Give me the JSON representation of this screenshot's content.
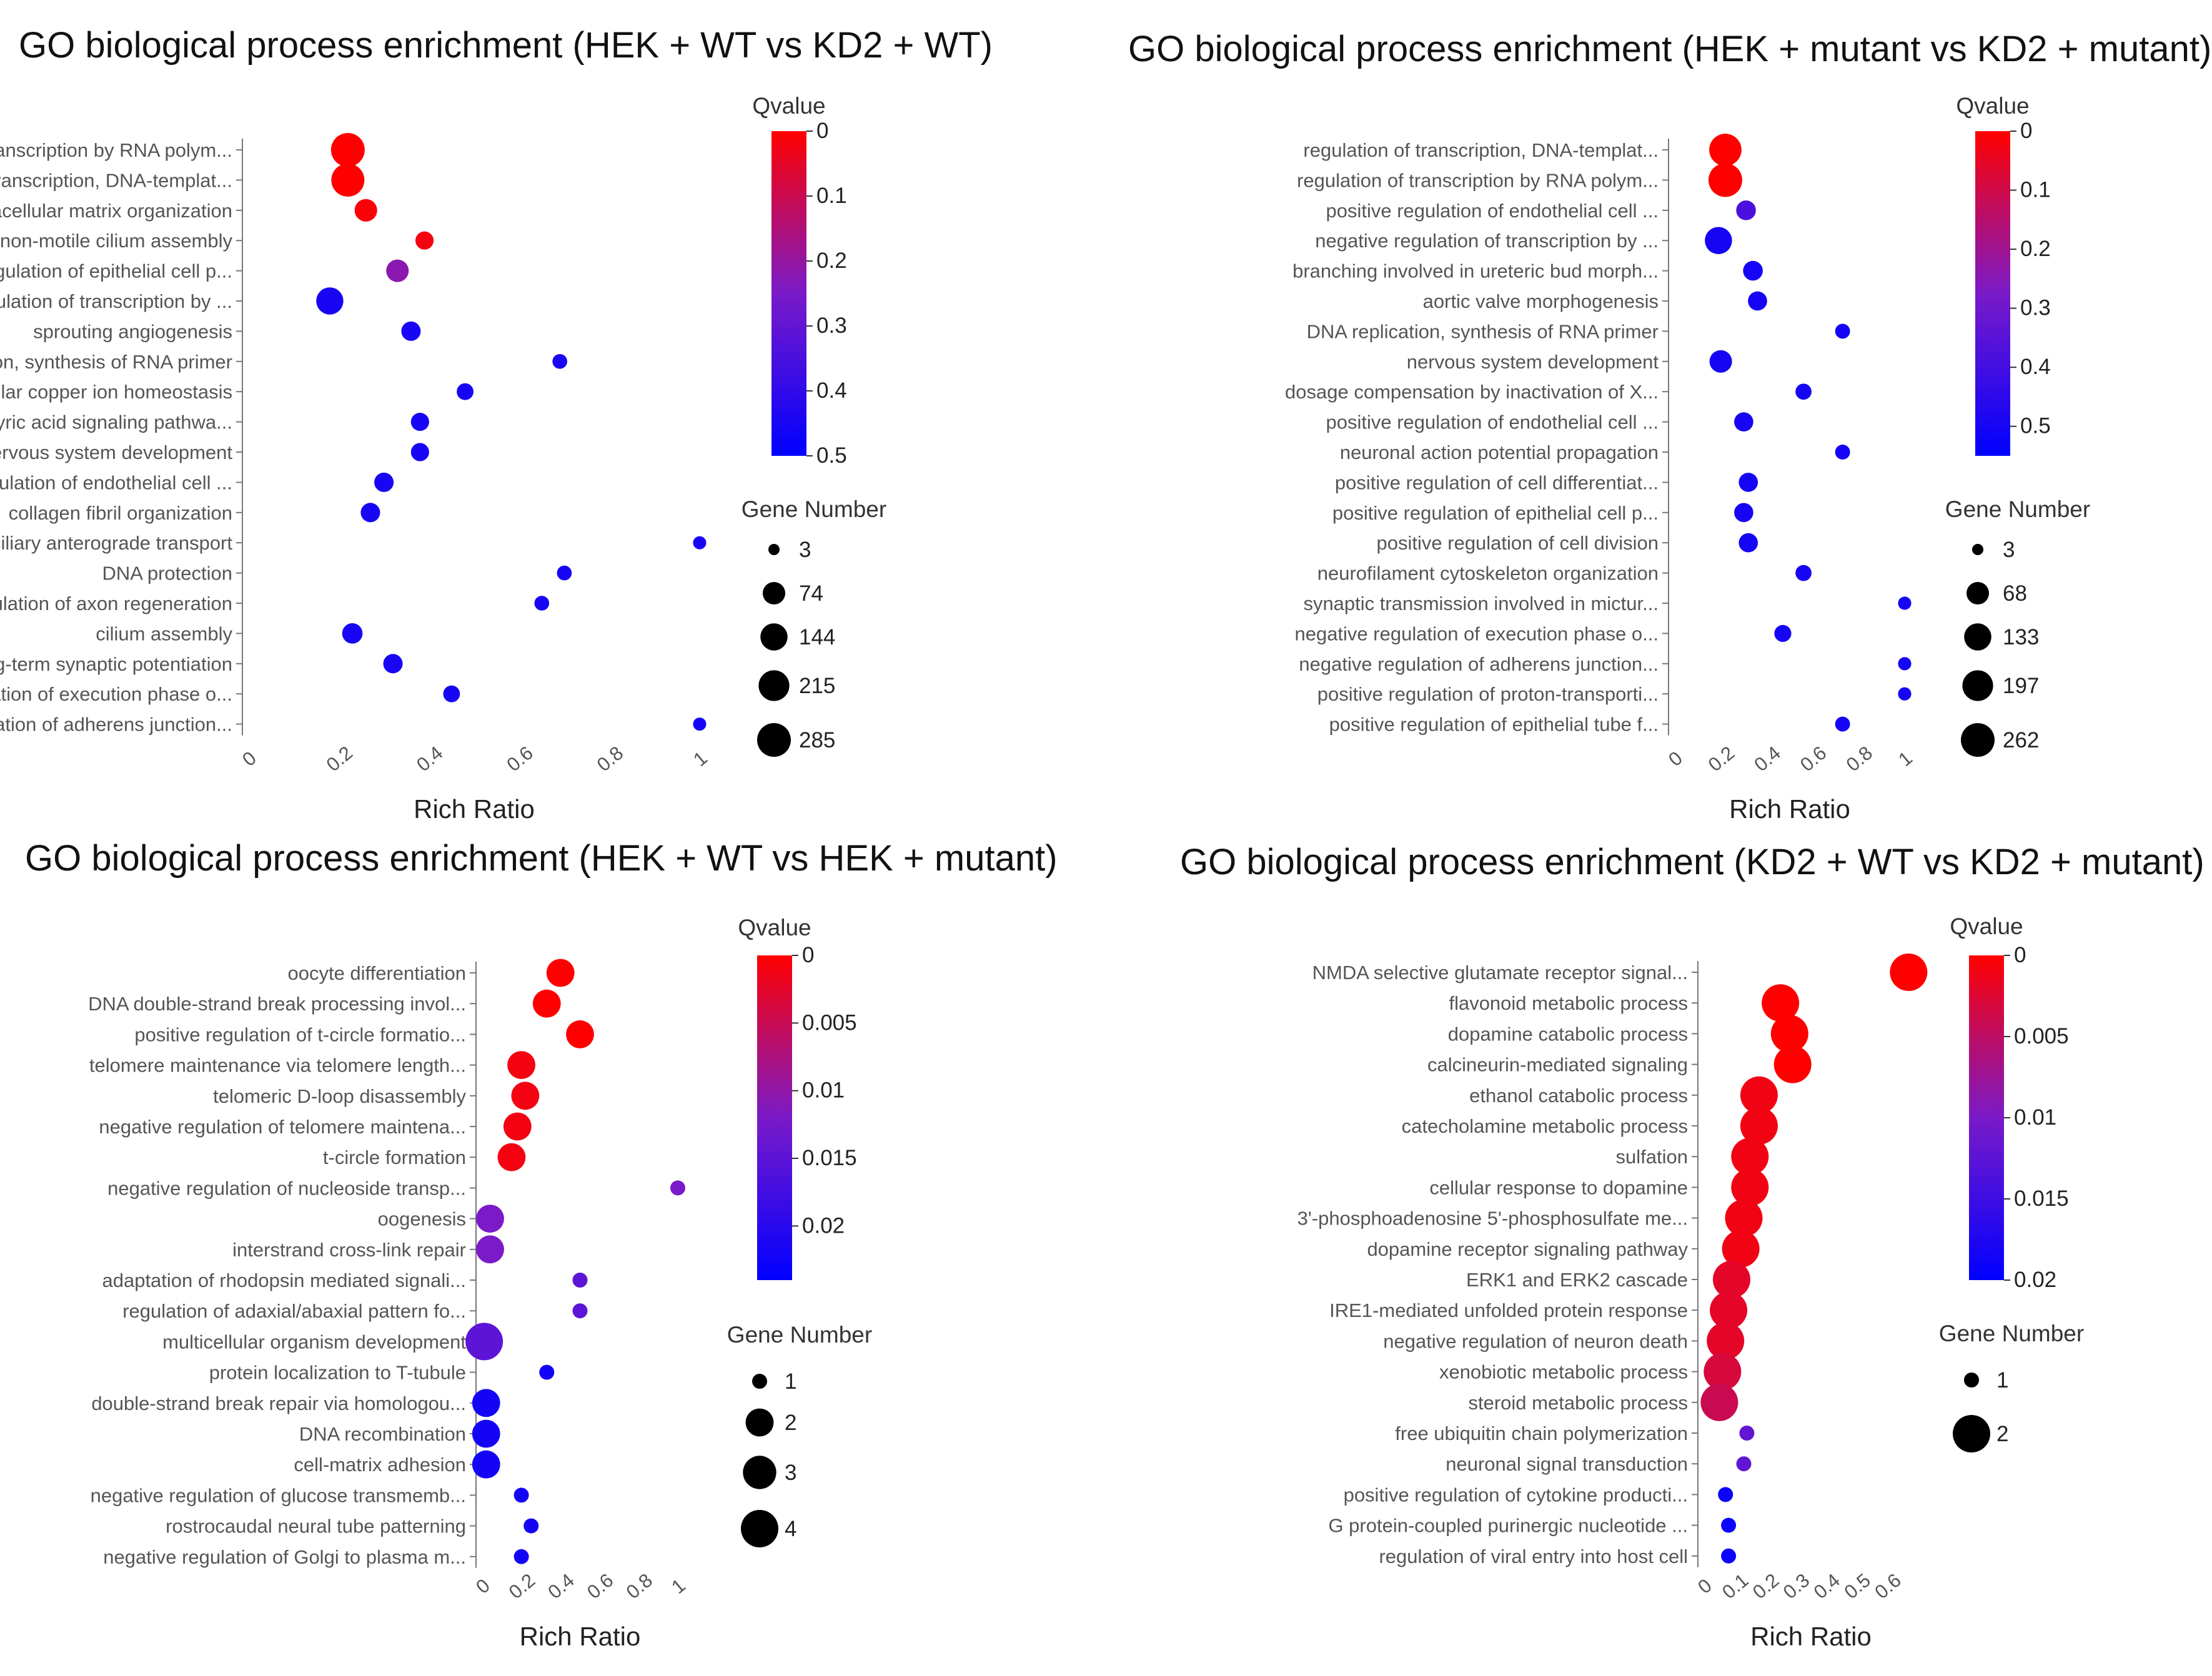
{
  "colors": {
    "high": "#ff0000",
    "mid": "#7a1ac8",
    "low": "#0000ff",
    "text": "#555555"
  },
  "chart_data": [
    {
      "type": "scatter",
      "title": "GO biological process enrichment (HEK + WT vs KD2 + WT)",
      "xlabel": "Rich Ratio",
      "xlim": [
        0,
        1
      ],
      "xticks": [
        "0",
        "0.2",
        "0.4",
        "0.6",
        "0.8",
        "1"
      ],
      "color_legend": {
        "title": "Qvalue",
        "min": 0,
        "max": 0.5,
        "ticks": [
          "0",
          "0.1",
          "0.2",
          "0.3",
          "0.4",
          "0.5"
        ]
      },
      "size_legend": {
        "title": "Gene Number",
        "values": [
          3,
          74,
          144,
          215,
          285
        ]
      },
      "terms": [
        {
          "term": "regulation of transcription by RNA polym...",
          "rich_ratio": 0.22,
          "qvalue": 0.0,
          "gene_number": 285
        },
        {
          "term": "regulation of transcription, DNA-templat...",
          "rich_ratio": 0.22,
          "qvalue": 0.0,
          "gene_number": 270
        },
        {
          "term": "extracellular matrix organization",
          "rich_ratio": 0.26,
          "qvalue": 0.01,
          "gene_number": 74
        },
        {
          "term": "non-motile cilium assembly",
          "rich_ratio": 0.39,
          "qvalue": 0.02,
          "gene_number": 30
        },
        {
          "term": "positive regulation of epithelial cell p...",
          "rich_ratio": 0.33,
          "qvalue": 0.22,
          "gene_number": 74
        },
        {
          "term": "negative regulation of transcription by ...",
          "rich_ratio": 0.18,
          "qvalue": 0.45,
          "gene_number": 144
        },
        {
          "term": "sprouting angiogenesis",
          "rich_ratio": 0.36,
          "qvalue": 0.45,
          "gene_number": 40
        },
        {
          "term": "DNA replication, synthesis of RNA primer",
          "rich_ratio": 0.69,
          "qvalue": 0.45,
          "gene_number": 10
        },
        {
          "term": "cellular copper ion homeostasis",
          "rich_ratio": 0.48,
          "qvalue": 0.45,
          "gene_number": 20
        },
        {
          "term": "gamma-aminobutyric acid signaling pathwa...",
          "rich_ratio": 0.38,
          "qvalue": 0.45,
          "gene_number": 30
        },
        {
          "term": "peripheral nervous system development",
          "rich_ratio": 0.38,
          "qvalue": 0.45,
          "gene_number": 30
        },
        {
          "term": "positive regulation of endothelial cell ...",
          "rich_ratio": 0.3,
          "qvalue": 0.45,
          "gene_number": 40
        },
        {
          "term": "collagen fibril organization",
          "rich_ratio": 0.27,
          "qvalue": 0.45,
          "gene_number": 40
        },
        {
          "term": "intraciliary anterograde transport",
          "rich_ratio": 1.0,
          "qvalue": 0.45,
          "gene_number": 5
        },
        {
          "term": "DNA protection",
          "rich_ratio": 0.7,
          "qvalue": 0.45,
          "gene_number": 10
        },
        {
          "term": "positive regulation of axon regeneration",
          "rich_ratio": 0.65,
          "qvalue": 0.45,
          "gene_number": 10
        },
        {
          "term": "cilium assembly",
          "rich_ratio": 0.23,
          "qvalue": 0.45,
          "gene_number": 50
        },
        {
          "term": "long-term synaptic potentiation",
          "rich_ratio": 0.32,
          "qvalue": 0.45,
          "gene_number": 40
        },
        {
          "term": "negative regulation of execution phase o...",
          "rich_ratio": 0.45,
          "qvalue": 0.45,
          "gene_number": 20
        },
        {
          "term": "negative regulation of adherens junction...",
          "rich_ratio": 1.0,
          "qvalue": 0.45,
          "gene_number": 5
        }
      ]
    },
    {
      "type": "scatter",
      "title": "GO biological process enrichment (HEK + mutant vs KD2 + mutant)",
      "xlabel": "Rich Ratio",
      "xlim": [
        0,
        1
      ],
      "xticks": [
        "0",
        "0.2",
        "0.4",
        "0.6",
        "0.8",
        "1"
      ],
      "color_legend": {
        "title": "Qvalue",
        "min": 0,
        "max": 0.55,
        "ticks": [
          "0",
          "0.1",
          "0.2",
          "0.3",
          "0.4",
          "0.5"
        ]
      },
      "size_legend": {
        "title": "Gene Number",
        "values": [
          3,
          68,
          133,
          197,
          262
        ]
      },
      "terms": [
        {
          "term": "regulation of transcription, DNA-templat...",
          "rich_ratio": 0.22,
          "qvalue": 0.0,
          "gene_number": 230
        },
        {
          "term": "regulation of transcription by RNA polym...",
          "rich_ratio": 0.22,
          "qvalue": 0.0,
          "gene_number": 262
        },
        {
          "term": "positive regulation of endothelial cell ...",
          "rich_ratio": 0.31,
          "qvalue": 0.38,
          "gene_number": 40
        },
        {
          "term": "negative regulation of transcription by ...",
          "rich_ratio": 0.19,
          "qvalue": 0.5,
          "gene_number": 133
        },
        {
          "term": "branching involved in ureteric bud morph...",
          "rich_ratio": 0.34,
          "qvalue": 0.5,
          "gene_number": 40
        },
        {
          "term": "aortic valve morphogenesis",
          "rich_ratio": 0.36,
          "qvalue": 0.5,
          "gene_number": 35
        },
        {
          "term": "DNA replication, synthesis of RNA primer",
          "rich_ratio": 0.73,
          "qvalue": 0.5,
          "gene_number": 10
        },
        {
          "term": "nervous system development",
          "rich_ratio": 0.2,
          "qvalue": 0.5,
          "gene_number": 68
        },
        {
          "term": "dosage compensation by inactivation of X...",
          "rich_ratio": 0.56,
          "qvalue": 0.5,
          "gene_number": 15
        },
        {
          "term": "positive regulation of endothelial cell ...",
          "rich_ratio": 0.3,
          "qvalue": 0.5,
          "gene_number": 35
        },
        {
          "term": "neuronal action potential propagation",
          "rich_ratio": 0.73,
          "qvalue": 0.5,
          "gene_number": 10
        },
        {
          "term": "positive regulation of cell differentiat...",
          "rich_ratio": 0.32,
          "qvalue": 0.5,
          "gene_number": 35
        },
        {
          "term": "positive regulation of epithelial cell p...",
          "rich_ratio": 0.3,
          "qvalue": 0.5,
          "gene_number": 35
        },
        {
          "term": "positive regulation of cell division",
          "rich_ratio": 0.32,
          "qvalue": 0.5,
          "gene_number": 35
        },
        {
          "term": "neurofilament cytoskeleton organization",
          "rich_ratio": 0.56,
          "qvalue": 0.5,
          "gene_number": 15
        },
        {
          "term": "synaptic transmission involved in mictur...",
          "rich_ratio": 1.0,
          "qvalue": 0.5,
          "gene_number": 5
        },
        {
          "term": "negative regulation of execution phase o...",
          "rich_ratio": 0.47,
          "qvalue": 0.5,
          "gene_number": 20
        },
        {
          "term": "negative regulation of adherens junction...",
          "rich_ratio": 1.0,
          "qvalue": 0.5,
          "gene_number": 5
        },
        {
          "term": "positive regulation of proton-transporti...",
          "rich_ratio": 1.0,
          "qvalue": 0.5,
          "gene_number": 5
        },
        {
          "term": "positive regulation of epithelial tube f...",
          "rich_ratio": 0.73,
          "qvalue": 0.5,
          "gene_number": 10
        }
      ]
    },
    {
      "type": "scatter",
      "title": "GO biological process enrichment (HEK + WT vs HEK + mutant)",
      "xlabel": "Rich Ratio",
      "xlim": [
        0,
        1
      ],
      "xticks": [
        "0",
        "0.2",
        "0.4",
        "0.6",
        "0.8",
        "1"
      ],
      "color_legend": {
        "title": "Qvalue",
        "min": 0,
        "max": 0.024,
        "ticks": [
          "0",
          "0.005",
          "0.01",
          "0.015",
          "0.02"
        ]
      },
      "size_legend": {
        "title": "Gene Number",
        "values": [
          1,
          2,
          3,
          4
        ]
      },
      "terms": [
        {
          "term": "oocyte differentiation",
          "rich_ratio": 0.4,
          "qvalue": 0.0,
          "gene_number": 2
        },
        {
          "term": "DNA double-strand break processing invol...",
          "rich_ratio": 0.33,
          "qvalue": 0.0,
          "gene_number": 2
        },
        {
          "term": "positive regulation of t-circle formatio...",
          "rich_ratio": 0.5,
          "qvalue": 0.0,
          "gene_number": 2
        },
        {
          "term": "telomere maintenance via telomere length...",
          "rich_ratio": 0.2,
          "qvalue": 0.001,
          "gene_number": 2
        },
        {
          "term": "telomeric D-loop disassembly",
          "rich_ratio": 0.22,
          "qvalue": 0.001,
          "gene_number": 2
        },
        {
          "term": "negative regulation of telomere maintena...",
          "rich_ratio": 0.18,
          "qvalue": 0.001,
          "gene_number": 2
        },
        {
          "term": "t-circle formation",
          "rich_ratio": 0.15,
          "qvalue": 0.001,
          "gene_number": 2
        },
        {
          "term": "negative regulation of nucleoside transp...",
          "rich_ratio": 1.0,
          "qvalue": 0.012,
          "gene_number": 1
        },
        {
          "term": "oogenesis",
          "rich_ratio": 0.04,
          "qvalue": 0.012,
          "gene_number": 2
        },
        {
          "term": "interstrand cross-link repair",
          "rich_ratio": 0.04,
          "qvalue": 0.012,
          "gene_number": 2
        },
        {
          "term": "adaptation of rhodopsin mediated signali...",
          "rich_ratio": 0.5,
          "qvalue": 0.015,
          "gene_number": 1
        },
        {
          "term": "regulation of adaxial/abaxial pattern fo...",
          "rich_ratio": 0.5,
          "qvalue": 0.015,
          "gene_number": 1
        },
        {
          "term": "multicellular organism development",
          "rich_ratio": 0.01,
          "qvalue": 0.015,
          "gene_number": 4
        },
        {
          "term": "protein localization to T-tubule",
          "rich_ratio": 0.33,
          "qvalue": 0.022,
          "gene_number": 1
        },
        {
          "term": "double-strand break repair via homologou...",
          "rich_ratio": 0.02,
          "qvalue": 0.022,
          "gene_number": 2
        },
        {
          "term": "DNA recombination",
          "rich_ratio": 0.02,
          "qvalue": 0.022,
          "gene_number": 2
        },
        {
          "term": "cell-matrix adhesion",
          "rich_ratio": 0.02,
          "qvalue": 0.022,
          "gene_number": 2
        },
        {
          "term": "negative regulation of glucose transmemb...",
          "rich_ratio": 0.2,
          "qvalue": 0.022,
          "gene_number": 1
        },
        {
          "term": "rostrocaudal neural tube patterning",
          "rich_ratio": 0.25,
          "qvalue": 0.022,
          "gene_number": 1
        },
        {
          "term": "negative regulation of Golgi to plasma m...",
          "rich_ratio": 0.2,
          "qvalue": 0.022,
          "gene_number": 1
        }
      ]
    },
    {
      "type": "scatter",
      "title": "GO biological process enrichment (KD2 + WT vs KD2 + mutant)",
      "xlabel": "Rich Ratio",
      "xlim": [
        0,
        0.7
      ],
      "xticks": [
        "0",
        "0.1",
        "0.2",
        "0.3",
        "0.4",
        "0.5",
        "0.6"
      ],
      "color_legend": {
        "title": "Qvalue",
        "min": 0,
        "max": 0.02,
        "ticks": [
          "0",
          "0.005",
          "0.01",
          "0.015",
          "0.02"
        ]
      },
      "size_legend": {
        "title": "Gene Number",
        "values": [
          1,
          2
        ]
      },
      "terms": [
        {
          "term": "NMDA selective glutamate receptor signal...",
          "rich_ratio": 0.67,
          "qvalue": 0.0,
          "gene_number": 2
        },
        {
          "term": "flavonoid metabolic process",
          "rich_ratio": 0.25,
          "qvalue": 0.0,
          "gene_number": 2
        },
        {
          "term": "dopamine catabolic process",
          "rich_ratio": 0.28,
          "qvalue": 0.0,
          "gene_number": 2
        },
        {
          "term": "calcineurin-mediated signaling",
          "rich_ratio": 0.29,
          "qvalue": 0.0,
          "gene_number": 2
        },
        {
          "term": "ethanol catabolic process",
          "rich_ratio": 0.18,
          "qvalue": 0.001,
          "gene_number": 2
        },
        {
          "term": "catecholamine metabolic process",
          "rich_ratio": 0.18,
          "qvalue": 0.001,
          "gene_number": 2
        },
        {
          "term": "sulfation",
          "rich_ratio": 0.15,
          "qvalue": 0.001,
          "gene_number": 2
        },
        {
          "term": "cellular response to dopamine",
          "rich_ratio": 0.15,
          "qvalue": 0.001,
          "gene_number": 2
        },
        {
          "term": "3'-phosphoadenosine 5'-phosphosulfate me...",
          "rich_ratio": 0.13,
          "qvalue": 0.001,
          "gene_number": 2
        },
        {
          "term": "dopamine receptor signaling pathway",
          "rich_ratio": 0.12,
          "qvalue": 0.001,
          "gene_number": 2
        },
        {
          "term": "ERK1 and ERK2 cascade",
          "rich_ratio": 0.09,
          "qvalue": 0.002,
          "gene_number": 2
        },
        {
          "term": "IRE1-mediated unfolded protein response",
          "rich_ratio": 0.08,
          "qvalue": 0.002,
          "gene_number": 2
        },
        {
          "term": "negative regulation of neuron death",
          "rich_ratio": 0.07,
          "qvalue": 0.002,
          "gene_number": 2
        },
        {
          "term": "xenobiotic metabolic process",
          "rich_ratio": 0.06,
          "qvalue": 0.003,
          "gene_number": 2
        },
        {
          "term": "steroid metabolic process",
          "rich_ratio": 0.05,
          "qvalue": 0.004,
          "gene_number": 2
        },
        {
          "term": "free ubiquitin chain polymerization",
          "rich_ratio": 0.14,
          "qvalue": 0.012,
          "gene_number": 1
        },
        {
          "term": "neuronal signal transduction",
          "rich_ratio": 0.13,
          "qvalue": 0.012,
          "gene_number": 1
        },
        {
          "term": "positive regulation of cytokine producti...",
          "rich_ratio": 0.07,
          "qvalue": 0.019,
          "gene_number": 1
        },
        {
          "term": "G protein-coupled purinergic nucleotide ...",
          "rich_ratio": 0.08,
          "qvalue": 0.019,
          "gene_number": 1
        },
        {
          "term": "regulation of viral entry into host cell",
          "rich_ratio": 0.08,
          "qvalue": 0.019,
          "gene_number": 1
        }
      ]
    }
  ]
}
